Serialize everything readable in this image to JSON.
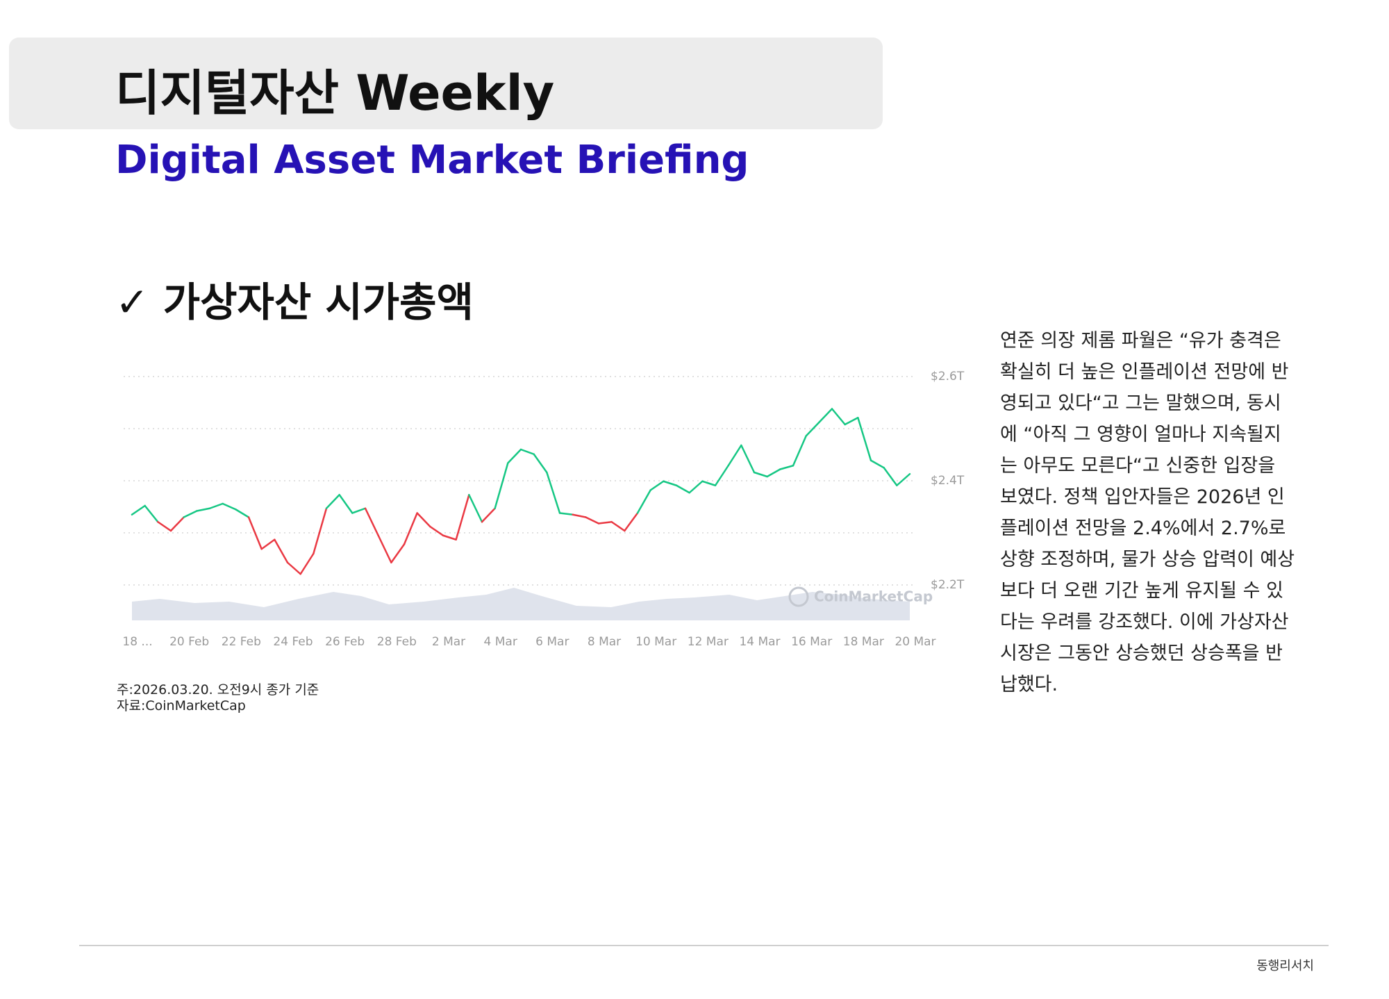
{
  "header": {
    "title": "디지털자산 Weekly",
    "subtitle": "Digital Asset Market Briefing"
  },
  "section_title": "✓ 가상자산 시가총액",
  "chart_data": {
    "type": "line",
    "watermark": "CoinMarketCap",
    "colors": {
      "up": "#16c784",
      "down": "#ea3943"
    },
    "x": [
      0,
      0.5,
      1,
      1.5,
      2,
      2.5,
      3,
      3.5,
      4,
      4.5,
      5,
      5.5,
      6,
      6.5,
      7,
      7.5,
      8,
      8.5,
      9,
      9.5,
      10,
      10.5,
      11,
      11.5,
      12,
      12.5,
      13,
      13.5,
      14,
      14.5,
      15,
      15.5,
      16,
      16.5,
      17,
      17.5,
      18,
      18.5,
      19,
      19.5,
      20,
      20.5,
      21,
      21.5,
      22,
      22.5,
      23,
      23.5,
      24,
      24.5,
      25,
      25.5,
      26,
      26.5,
      27,
      27.5,
      28,
      28.5,
      29,
      29.5,
      30
    ],
    "values": [
      2.335,
      2.352,
      2.321,
      2.304,
      2.33,
      2.342,
      2.347,
      2.356,
      2.345,
      2.33,
      2.269,
      2.287,
      2.243,
      2.221,
      2.26,
      2.347,
      2.373,
      2.338,
      2.347,
      2.295,
      2.243,
      2.278,
      2.338,
      2.312,
      2.295,
      2.287,
      2.373,
      2.321,
      2.347,
      2.434,
      2.46,
      2.451,
      2.416,
      2.338,
      2.335,
      2.33,
      2.318,
      2.321,
      2.304,
      2.338,
      2.382,
      2.399,
      2.391,
      2.377,
      2.399,
      2.391,
      2.429,
      2.468,
      2.416,
      2.408,
      2.422,
      2.429,
      2.486,
      2.512,
      2.538,
      2.508,
      2.521,
      2.439,
      2.425,
      2.391,
      2.413
    ],
    "xlim": [
      0,
      30
    ],
    "xticks": [
      {
        "value": 0,
        "label": "18 ..."
      },
      {
        "value": 2,
        "label": "20 Feb"
      },
      {
        "value": 4,
        "label": "22 Feb"
      },
      {
        "value": 6,
        "label": "24 Feb"
      },
      {
        "value": 8,
        "label": "26 Feb"
      },
      {
        "value": 10,
        "label": "28 Feb"
      },
      {
        "value": 12,
        "label": "2 Mar"
      },
      {
        "value": 14,
        "label": "4 Mar"
      },
      {
        "value": 16,
        "label": "6 Mar"
      },
      {
        "value": 18,
        "label": "8 Mar"
      },
      {
        "value": 20,
        "label": "10 Mar"
      },
      {
        "value": 22,
        "label": "12 Mar"
      },
      {
        "value": 24,
        "label": "14 Mar"
      },
      {
        "value": 26,
        "label": "16 Mar"
      },
      {
        "value": 28,
        "label": "18 Mar"
      },
      {
        "value": 30,
        "label": "20 Mar"
      }
    ],
    "ylim": [
      2.14,
      2.64
    ],
    "yticks": [
      {
        "value": 2.2,
        "label": "$2.2T"
      },
      {
        "value": 2.4,
        "label": "$2.4T"
      },
      {
        "value": 2.6,
        "label": "$2.6T"
      }
    ],
    "minor_yticks": [
      2.3,
      2.5
    ],
    "grid": true
  },
  "notes": [
    "주:2026.03.20. 오전9시 종가 기준",
    "자료:CoinMarketCap"
  ],
  "paragraph": [
    "연준 의장 제롬 파월은 “유가 충격은",
    "확실히 더 높은 인플레이션 전망에 반",
    "영되고 있다“고 그는 말했으며, 동시",
    "에 “아직 그 영향이 얼마나 지속될지",
    "는 아무도 모른다“고 신중한 입장을",
    "보였다. 정책 입안자들은 2026년 인",
    "플레이션 전망을 2.4%에서 2.7%로",
    "상향 조정하며, 물가 상승 압력이 예상",
    "보다 더 오랜 기간 높게 유지될 수 있",
    "다는 우려를 강조했다. 이에 가상자산",
    "시장은 그동안 상승했던 상승폭을 반",
    "납했다."
  ],
  "footer": "동행리서치"
}
